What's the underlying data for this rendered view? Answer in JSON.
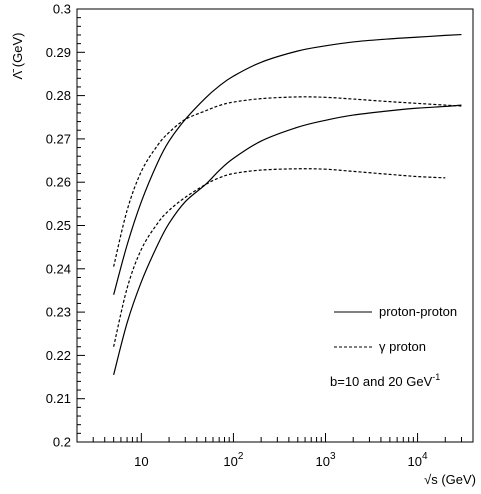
{
  "chart_data": {
    "type": "line",
    "title": "",
    "xlabel": "√s (GeV)",
    "ylabel": "Λ̄ (GeV)",
    "x_scale": "log",
    "xlim": [
      2,
      40000
    ],
    "ylim": [
      0.2,
      0.3
    ],
    "grid": false,
    "legend_position": "bottom-right",
    "y_ticks": [
      "0.2",
      "0.21",
      "0.22",
      "0.23",
      "0.24",
      "0.25",
      "0.26",
      "0.27",
      "0.28",
      "0.29",
      "0.3"
    ],
    "x_ticks": [
      {
        "value": 10,
        "base": "10",
        "exp": ""
      },
      {
        "value": 100,
        "base": "10",
        "exp": "2"
      },
      {
        "value": 1000,
        "base": "10",
        "exp": "3"
      },
      {
        "value": 10000,
        "base": "10",
        "exp": "4"
      }
    ],
    "legend": {
      "entries": [
        {
          "label": "proton-proton",
          "style": "solid"
        },
        {
          "label": "γ proton",
          "style": "dashed"
        }
      ],
      "note_base": "b=10 and 20 GeV",
      "note_exp": "-1"
    },
    "series": [
      {
        "style": "solid",
        "x": [
          5,
          7,
          10,
          15,
          20,
          30,
          50,
          70,
          100,
          200,
          500,
          1000,
          2000,
          5000,
          10000,
          20000,
          30000
        ],
        "y": [
          0.234,
          0.2455,
          0.2555,
          0.2645,
          0.2695,
          0.2745,
          0.2795,
          0.2822,
          0.2845,
          0.2877,
          0.2903,
          0.2915,
          0.2924,
          0.2931,
          0.2935,
          0.2939,
          0.2941
        ]
      },
      {
        "style": "solid",
        "x": [
          5,
          7,
          10,
          15,
          20,
          30,
          50,
          70,
          100,
          200,
          500,
          1000,
          2000,
          5000,
          10000,
          20000,
          30000
        ],
        "y": [
          0.2155,
          0.2275,
          0.237,
          0.2455,
          0.2505,
          0.2555,
          0.2595,
          0.2627,
          0.2655,
          0.2695,
          0.2727,
          0.2743,
          0.2755,
          0.2765,
          0.2771,
          0.2775,
          0.2778
        ]
      },
      {
        "style": "dashed",
        "x": [
          5,
          7,
          10,
          15,
          20,
          30,
          50,
          70,
          100,
          200,
          500,
          1000,
          2000,
          5000,
          10000,
          20000,
          30000
        ],
        "y": [
          0.2405,
          0.2535,
          0.2625,
          0.2685,
          0.2715,
          0.2745,
          0.2765,
          0.2777,
          0.2785,
          0.2793,
          0.2797,
          0.2796,
          0.2792,
          0.2786,
          0.2782,
          0.2778,
          0.2776
        ]
      },
      {
        "style": "dashed",
        "x": [
          5,
          7,
          10,
          15,
          20,
          30,
          50,
          70,
          100,
          200,
          500,
          1000,
          2000,
          5000,
          10000,
          20000
        ],
        "y": [
          0.222,
          0.2355,
          0.2445,
          0.2505,
          0.2535,
          0.2565,
          0.2595,
          0.261,
          0.262,
          0.2628,
          0.2631,
          0.263,
          0.2625,
          0.2618,
          0.2613,
          0.261
        ]
      }
    ]
  }
}
